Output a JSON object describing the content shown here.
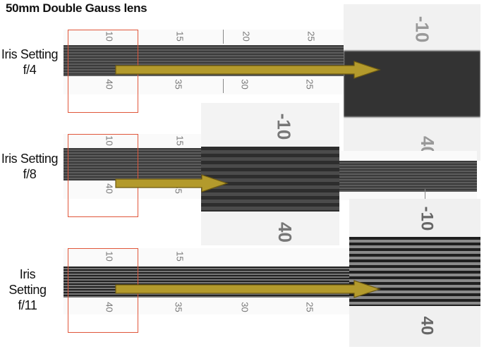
{
  "title": "50mm Double Gauss lens",
  "rows": [
    {
      "label_line1": "Iris Setting",
      "label_line2": "f/4",
      "top_numbers": [
        "10",
        "15",
        "20",
        "25"
      ],
      "bottom_numbers": [
        "40",
        "35",
        "30",
        "25"
      ],
      "zoom_top_number": "-10",
      "zoom_bottom_number": "40"
    },
    {
      "label_line1": "Iris Setting",
      "label_line2": "f/8",
      "top_numbers": [
        "10",
        "15"
      ],
      "bottom_numbers": [
        "40",
        "35"
      ],
      "zoom_top_number": "-10",
      "zoom_bottom_number": "40"
    },
    {
      "label_line1": "Iris Setting",
      "label_line2": "f/11",
      "top_numbers": [
        "10",
        "15"
      ],
      "bottom_numbers": [
        "40",
        "35",
        "30",
        "25"
      ],
      "zoom_top_number": "-10",
      "zoom_bottom_number": "40"
    }
  ],
  "colors": {
    "arrow": "#b39a2c",
    "arrow_stroke": "#6e5b12",
    "highlight_box": "#e0563a"
  }
}
